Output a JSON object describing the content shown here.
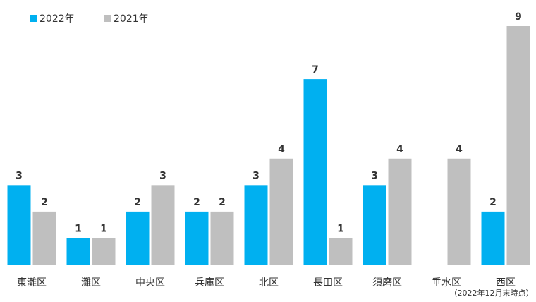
{
  "chart_data": {
    "type": "bar",
    "categories": [
      "東灘区",
      "灘区",
      "中央区",
      "兵庫区",
      "北区",
      "長田区",
      "須磨区",
      "垂水区",
      "西区"
    ],
    "series": [
      {
        "name": "2022年",
        "color": "#00b0f0",
        "values": [
          3,
          1,
          2,
          2,
          3,
          7,
          3,
          null,
          2
        ]
      },
      {
        "name": "2021年",
        "color": "#bfbfbf",
        "values": [
          2,
          1,
          3,
          2,
          4,
          1,
          4,
          4,
          9
        ]
      }
    ],
    "annotation": "（2022年12月末時点）"
  }
}
